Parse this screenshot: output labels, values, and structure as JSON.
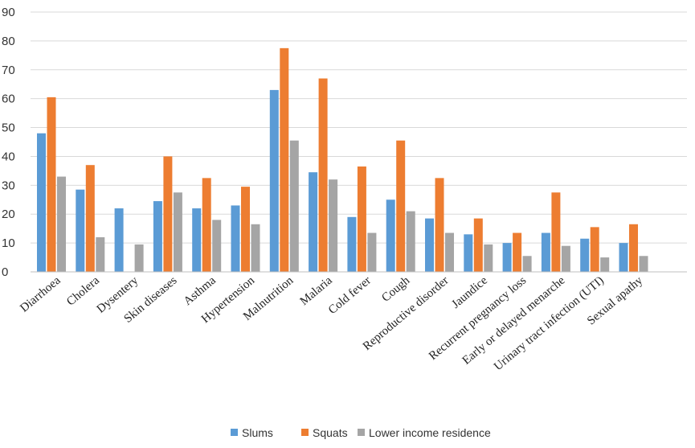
{
  "chart_data": {
    "type": "bar",
    "categories": [
      "Diarrhoea",
      "Cholera",
      "Dysentery",
      "Skin diseases",
      "Asthma",
      "Hypertension",
      "Malnutrition",
      "Malaria",
      "Cold fever",
      "Cough",
      "Reproductive disorder",
      "Jaundice",
      "Recurrent pregnancy loss",
      "Early or delayed menarche",
      "Urinary tract infection (UTI)",
      "Sexual apathy"
    ],
    "series": [
      {
        "name": "Slums",
        "color": "#5B9BD5",
        "values": [
          48,
          28.5,
          22,
          24.5,
          22,
          23,
          63,
          34.5,
          19,
          25,
          18.5,
          13,
          10,
          13.5,
          11.5,
          10
        ]
      },
      {
        "name": "Squats",
        "color": "#ED7D31",
        "values": [
          60.5,
          37,
          0,
          40,
          32.5,
          29.5,
          77.5,
          67,
          36.5,
          45.5,
          32.5,
          18.5,
          13.5,
          27.5,
          15.5,
          16.5
        ]
      },
      {
        "name": "Lower income residence",
        "color": "#A5A5A5",
        "values": [
          33,
          12,
          9.5,
          27.5,
          18,
          16.5,
          45.5,
          32,
          13.5,
          21,
          13.5,
          9.5,
          5.5,
          9,
          5,
          5.5
        ]
      }
    ],
    "ylim": [
      0,
      90
    ],
    "yticks": [
      "0",
      "10",
      "20",
      "30",
      "40",
      "50",
      "60",
      "70",
      "80",
      "90"
    ],
    "grid": true,
    "legend_position": "bottom"
  }
}
